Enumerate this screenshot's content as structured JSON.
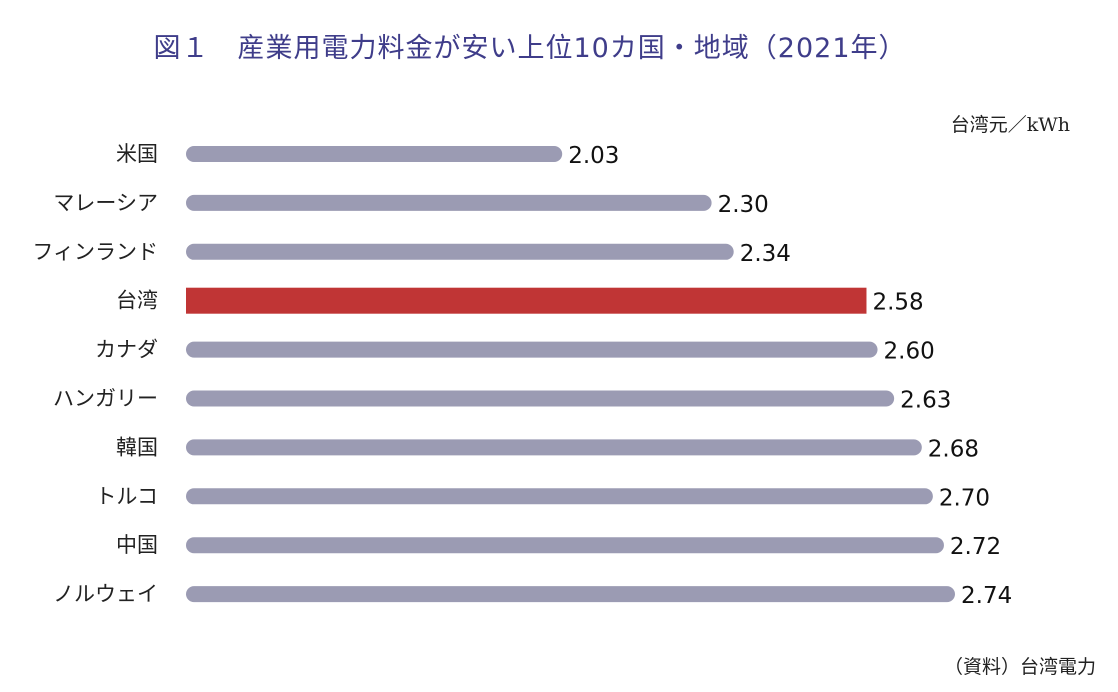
{
  "title": "図１　産業用電力料金が安い上位10カ国・地域（2021年）",
  "unit": "台湾元／kWh",
  "source": "（資料）台湾電力",
  "colors": {
    "bar": "#9b9bb3",
    "highlight": "#c03535",
    "title": "#3f3d8a"
  },
  "chart_data": {
    "type": "bar",
    "orientation": "horizontal",
    "categories": [
      "米国",
      "マレーシア",
      "フィンランド",
      "台湾",
      "カナダ",
      "ハンガリー",
      "韓国",
      "トルコ",
      "中国",
      "ノルウェイ"
    ],
    "values": [
      2.03,
      2.3,
      2.34,
      2.58,
      2.6,
      2.63,
      2.68,
      2.7,
      2.72,
      2.74
    ],
    "value_labels": [
      "2.03",
      "2.30",
      "2.34",
      "2.58",
      "2.60",
      "2.63",
      "2.68",
      "2.70",
      "2.72",
      "2.74"
    ],
    "highlight": "台湾",
    "xlim": [
      1.35,
      2.74
    ],
    "grid": false,
    "title": "図１　産業用電力料金が安い上位10カ国・地域（2021年）",
    "xlabel": "台湾元／kWh",
    "ylabel": ""
  }
}
